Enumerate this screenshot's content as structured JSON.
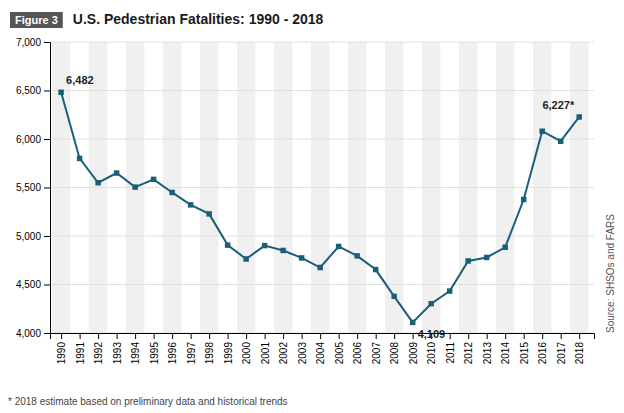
{
  "chart_data": {
    "type": "line",
    "title": "U.S. Pedestrian Fatalities: 1990 - 2018",
    "figure_label": "Figure 3",
    "footnote": "* 2018 estimate based on preliminary data and historical trends",
    "source": "Source: SHSOs and FARS",
    "x": [
      1990,
      1991,
      1992,
      1993,
      1994,
      1995,
      1996,
      1997,
      1998,
      1999,
      2000,
      2001,
      2002,
      2003,
      2004,
      2005,
      2006,
      2007,
      2008,
      2009,
      2010,
      2011,
      2012,
      2013,
      2014,
      2015,
      2016,
      2017,
      2018
    ],
    "values": [
      6482,
      5800,
      5549,
      5649,
      5504,
      5584,
      5449,
      5321,
      5228,
      4906,
      4763,
      4901,
      4851,
      4774,
      4675,
      4892,
      4795,
      4654,
      4378,
      4109,
      4302,
      4432,
      4743,
      4779,
      4884,
      5376,
      6080,
      5977,
      6227
    ],
    "color": "#1a5f7a",
    "marker": "square",
    "xlim": [
      1989.4,
      2018.8
    ],
    "xticks": [
      1990,
      1991,
      1992,
      1993,
      1994,
      1995,
      1996,
      1997,
      1998,
      1999,
      2000,
      2001,
      2002,
      2003,
      2004,
      2005,
      2006,
      2007,
      2008,
      2009,
      2010,
      2011,
      2012,
      2013,
      2014,
      2015,
      2016,
      2017,
      2018
    ],
    "ylim": [
      4000,
      7000
    ],
    "yticks": [
      {
        "value": 4000,
        "label": "4,000"
      },
      {
        "value": 4500,
        "label": "4,500"
      },
      {
        "value": 5000,
        "label": "5,000"
      },
      {
        "value": 5500,
        "label": "5,500"
      },
      {
        "value": 6000,
        "label": "6,000"
      },
      {
        "value": 6500,
        "label": "6,500"
      },
      {
        "value": 7000,
        "label": "7,000"
      }
    ],
    "grid": true,
    "annotations": [
      {
        "text": "6,482",
        "x": 1990
      },
      {
        "text": "4,109",
        "x": 2009
      },
      {
        "text": "6,227*",
        "x": 2018
      }
    ]
  }
}
